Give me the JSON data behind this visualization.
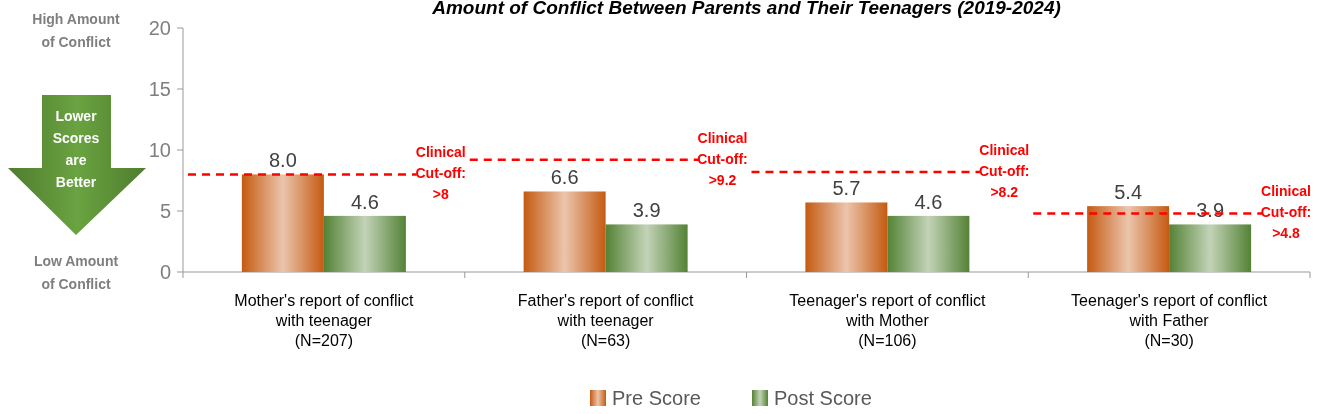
{
  "chart_data": {
    "type": "bar",
    "title": "Amount of Conflict Between Parents and Their Teenagers (2019-2024)",
    "categories": [
      "Mother's report of conflict\nwith teenager\n(N=207)",
      "Father's report of conflict\nwith teenager\n(N=63)",
      "Teenager's report of conflict\nwith Mother\n(N=106)",
      "Teenager's report of conflict\nwith Father\n(N=30)"
    ],
    "series": [
      {
        "name": "Pre Score",
        "color": "#c55a11",
        "values": [
          8.0,
          6.6,
          5.7,
          5.4
        ],
        "value_labels": [
          "8.0",
          "6.6",
          "5.7",
          "5.4"
        ]
      },
      {
        "name": "Post Score",
        "color": "#548235",
        "values": [
          4.6,
          3.9,
          4.6,
          3.9
        ],
        "value_labels": [
          "4.6",
          "3.9",
          "4.6",
          "3.9"
        ]
      }
    ],
    "ylim": [
      0,
      20
    ],
    "yticks": [
      0,
      5,
      10,
      15,
      20
    ],
    "legend": "bottom",
    "ref_lines": [
      {
        "axis": "y",
        "value": 8,
        "label": "Clinical Cut-off: >8",
        "color": "#ff0000",
        "line_style": "dashed"
      },
      {
        "axis": "y",
        "value": 9.2,
        "label": "Clinical Cut-off: >9.2",
        "color": "#ff0000",
        "line_style": "dashed"
      },
      {
        "axis": "y",
        "value": 8.2,
        "label": "Clinical Cut-off: >8.2",
        "color": "#ff0000",
        "line_style": "dashed"
      },
      {
        "axis": "y",
        "value": 4.8,
        "label": "Clinical Cut-off: >4.8",
        "color": "#ff0000",
        "line_style": "dashed"
      }
    ],
    "annotations": [
      "High Amount\nof Conflict",
      "Lower\nScores\nare\nBetter",
      "Low Amount\nof Conflict"
    ]
  }
}
